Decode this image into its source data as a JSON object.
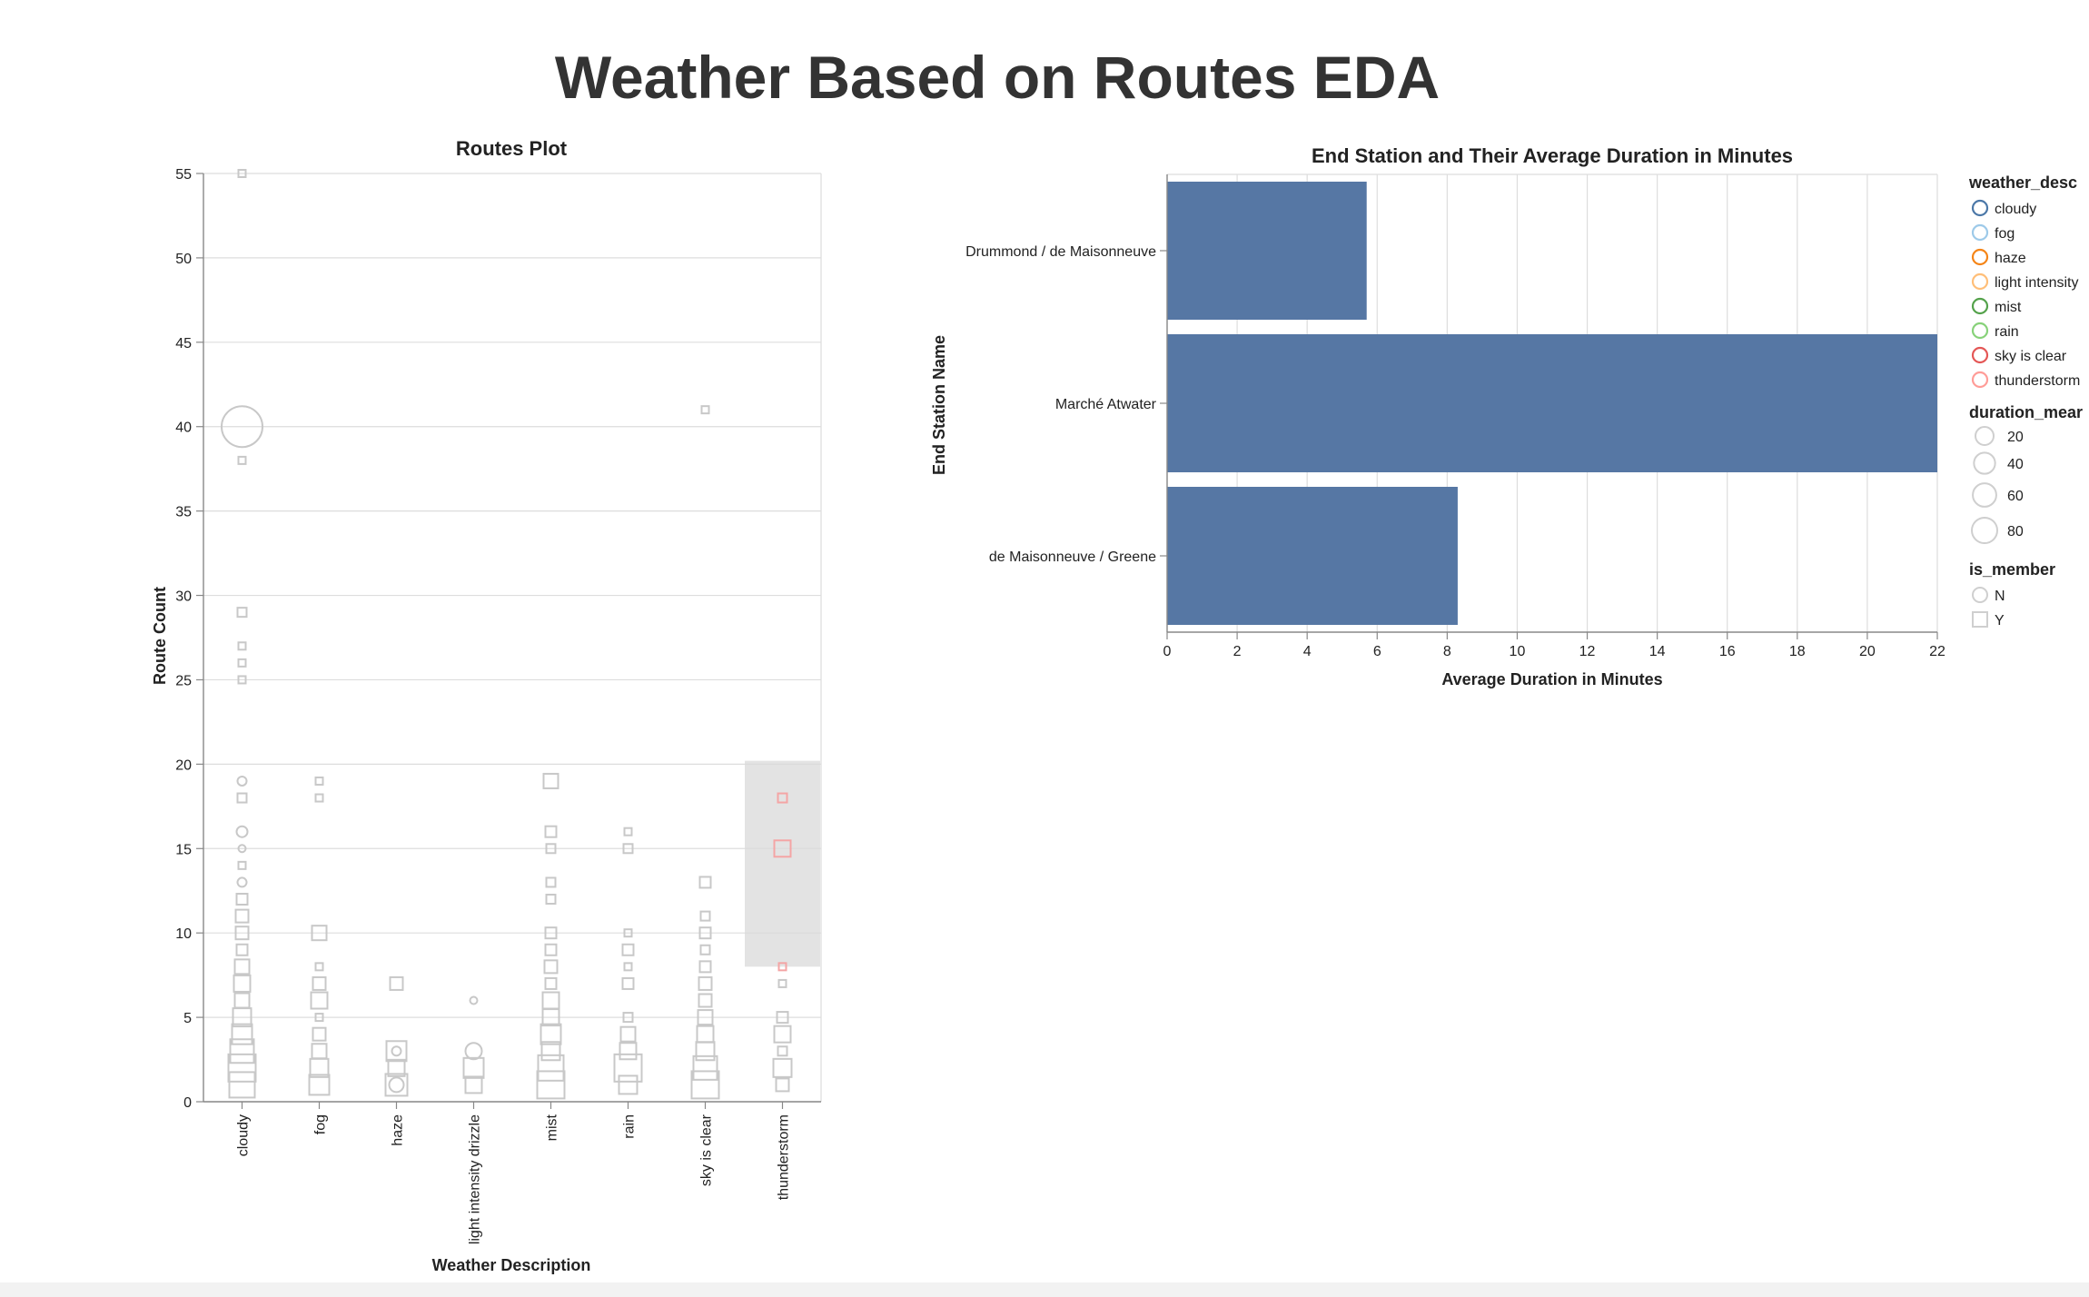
{
  "page_title": "Weather Based on Routes EDA",
  "colors": {
    "text": "#333333",
    "bar": "#5677a4",
    "grid": "#dddddd",
    "axis": "#888888",
    "dimmed_mark": "#c8c8c8",
    "selection": "#d9d9d9",
    "highlight": "#f4a5a5"
  },
  "chart_data": [
    {
      "type": "scatter",
      "title": "Routes Plot",
      "xlabel": "Weather Description",
      "ylabel": "Route Count",
      "categories": [
        "cloudy",
        "fog",
        "haze",
        "light intensity drizzle",
        "mist",
        "rain",
        "sky is clear",
        "thunderstorm"
      ],
      "ylim": [
        0,
        55
      ],
      "yticks": [
        0,
        5,
        10,
        15,
        20,
        25,
        30,
        35,
        40,
        45,
        50,
        55
      ],
      "grid": true,
      "selection": {
        "category": "thunderstorm",
        "y_range": [
          8,
          20.2
        ]
      },
      "points": [
        {
          "x": "cloudy",
          "y": 55,
          "shape": "square",
          "size": 8
        },
        {
          "x": "cloudy",
          "y": 40,
          "shape": "circle",
          "size": 45
        },
        {
          "x": "cloudy",
          "y": 38,
          "shape": "square",
          "size": 8
        },
        {
          "x": "cloudy",
          "y": 29,
          "shape": "square",
          "size": 10
        },
        {
          "x": "cloudy",
          "y": 27,
          "shape": "square",
          "size": 8
        },
        {
          "x": "cloudy",
          "y": 26,
          "shape": "square",
          "size": 8
        },
        {
          "x": "cloudy",
          "y": 25,
          "shape": "square",
          "size": 8
        },
        {
          "x": "cloudy",
          "y": 19,
          "shape": "circle",
          "size": 10
        },
        {
          "x": "cloudy",
          "y": 18,
          "shape": "square",
          "size": 10
        },
        {
          "x": "cloudy",
          "y": 16,
          "shape": "circle",
          "size": 12
        },
        {
          "x": "cloudy",
          "y": 15,
          "shape": "circle",
          "size": 8
        },
        {
          "x": "cloudy",
          "y": 14,
          "shape": "square",
          "size": 8
        },
        {
          "x": "cloudy",
          "y": 13,
          "shape": "circle",
          "size": 10
        },
        {
          "x": "cloudy",
          "y": 12,
          "shape": "square",
          "size": 12
        },
        {
          "x": "cloudy",
          "y": 11,
          "shape": "square",
          "size": 14
        },
        {
          "x": "cloudy",
          "y": 10,
          "shape": "square",
          "size": 14
        },
        {
          "x": "cloudy",
          "y": 9,
          "shape": "square",
          "size": 12
        },
        {
          "x": "cloudy",
          "y": 8,
          "shape": "square",
          "size": 16
        },
        {
          "x": "cloudy",
          "y": 7,
          "shape": "square",
          "size": 18
        },
        {
          "x": "cloudy",
          "y": 6,
          "shape": "square",
          "size": 16
        },
        {
          "x": "cloudy",
          "y": 5,
          "shape": "square",
          "size": 20
        },
        {
          "x": "cloudy",
          "y": 4,
          "shape": "square",
          "size": 22
        },
        {
          "x": "cloudy",
          "y": 3,
          "shape": "square",
          "size": 26
        },
        {
          "x": "cloudy",
          "y": 2,
          "shape": "square",
          "size": 30
        },
        {
          "x": "cloudy",
          "y": 1,
          "shape": "square",
          "size": 28
        },
        {
          "x": "fog",
          "y": 19,
          "shape": "square",
          "size": 8
        },
        {
          "x": "fog",
          "y": 18,
          "shape": "square",
          "size": 8
        },
        {
          "x": "fog",
          "y": 10,
          "shape": "square",
          "size": 16
        },
        {
          "x": "fog",
          "y": 8,
          "shape": "square",
          "size": 8
        },
        {
          "x": "fog",
          "y": 7,
          "shape": "square",
          "size": 14
        },
        {
          "x": "fog",
          "y": 6,
          "shape": "square",
          "size": 18
        },
        {
          "x": "fog",
          "y": 5,
          "shape": "square",
          "size": 8
        },
        {
          "x": "fog",
          "y": 4,
          "shape": "square",
          "size": 14
        },
        {
          "x": "fog",
          "y": 3,
          "shape": "square",
          "size": 16
        },
        {
          "x": "fog",
          "y": 2,
          "shape": "square",
          "size": 20
        },
        {
          "x": "fog",
          "y": 1,
          "shape": "square",
          "size": 22
        },
        {
          "x": "haze",
          "y": 7,
          "shape": "square",
          "size": 14
        },
        {
          "x": "haze",
          "y": 3,
          "shape": "square",
          "size": 22
        },
        {
          "x": "haze",
          "y": 2,
          "shape": "square",
          "size": 18
        },
        {
          "x": "haze",
          "y": 1,
          "shape": "square",
          "size": 24
        },
        {
          "x": "haze",
          "y": 1,
          "shape": "circle",
          "size": 16
        },
        {
          "x": "haze",
          "y": 3,
          "shape": "circle",
          "size": 10
        },
        {
          "x": "light intensity drizzle",
          "y": 6,
          "shape": "circle",
          "size": 8
        },
        {
          "x": "light intensity drizzle",
          "y": 3,
          "shape": "circle",
          "size": 18
        },
        {
          "x": "light intensity drizzle",
          "y": 2,
          "shape": "square",
          "size": 22
        },
        {
          "x": "light intensity drizzle",
          "y": 1,
          "shape": "square",
          "size": 18
        },
        {
          "x": "mist",
          "y": 19,
          "shape": "square",
          "size": 16
        },
        {
          "x": "mist",
          "y": 16,
          "shape": "square",
          "size": 12
        },
        {
          "x": "mist",
          "y": 15,
          "shape": "square",
          "size": 10
        },
        {
          "x": "mist",
          "y": 13,
          "shape": "square",
          "size": 10
        },
        {
          "x": "mist",
          "y": 12,
          "shape": "square",
          "size": 10
        },
        {
          "x": "mist",
          "y": 10,
          "shape": "square",
          "size": 12
        },
        {
          "x": "mist",
          "y": 9,
          "shape": "square",
          "size": 12
        },
        {
          "x": "mist",
          "y": 8,
          "shape": "square",
          "size": 14
        },
        {
          "x": "mist",
          "y": 7,
          "shape": "square",
          "size": 12
        },
        {
          "x": "mist",
          "y": 6,
          "shape": "square",
          "size": 18
        },
        {
          "x": "mist",
          "y": 5,
          "shape": "square",
          "size": 18
        },
        {
          "x": "mist",
          "y": 4,
          "shape": "square",
          "size": 22
        },
        {
          "x": "mist",
          "y": 3,
          "shape": "square",
          "size": 20
        },
        {
          "x": "mist",
          "y": 2,
          "shape": "square",
          "size": 28
        },
        {
          "x": "mist",
          "y": 1,
          "shape": "square",
          "size": 30
        },
        {
          "x": "rain",
          "y": 16,
          "shape": "square",
          "size": 8
        },
        {
          "x": "rain",
          "y": 15,
          "shape": "square",
          "size": 10
        },
        {
          "x": "rain",
          "y": 10,
          "shape": "square",
          "size": 8
        },
        {
          "x": "rain",
          "y": 9,
          "shape": "square",
          "size": 12
        },
        {
          "x": "rain",
          "y": 8,
          "shape": "square",
          "size": 8
        },
        {
          "x": "rain",
          "y": 7,
          "shape": "square",
          "size": 12
        },
        {
          "x": "rain",
          "y": 5,
          "shape": "square",
          "size": 10
        },
        {
          "x": "rain",
          "y": 4,
          "shape": "square",
          "size": 16
        },
        {
          "x": "rain",
          "y": 3,
          "shape": "square",
          "size": 18
        },
        {
          "x": "rain",
          "y": 2,
          "shape": "square",
          "size": 30
        },
        {
          "x": "rain",
          "y": 1,
          "shape": "square",
          "size": 20
        },
        {
          "x": "sky is clear",
          "y": 41,
          "shape": "square",
          "size": 8
        },
        {
          "x": "sky is clear",
          "y": 13,
          "shape": "square",
          "size": 12
        },
        {
          "x": "sky is clear",
          "y": 11,
          "shape": "square",
          "size": 10
        },
        {
          "x": "sky is clear",
          "y": 10,
          "shape": "square",
          "size": 12
        },
        {
          "x": "sky is clear",
          "y": 9,
          "shape": "square",
          "size": 10
        },
        {
          "x": "sky is clear",
          "y": 8,
          "shape": "square",
          "size": 12
        },
        {
          "x": "sky is clear",
          "y": 7,
          "shape": "square",
          "size": 14
        },
        {
          "x": "sky is clear",
          "y": 6,
          "shape": "square",
          "size": 14
        },
        {
          "x": "sky is clear",
          "y": 5,
          "shape": "square",
          "size": 16
        },
        {
          "x": "sky is clear",
          "y": 4,
          "shape": "square",
          "size": 18
        },
        {
          "x": "sky is clear",
          "y": 3,
          "shape": "square",
          "size": 20
        },
        {
          "x": "sky is clear",
          "y": 2,
          "shape": "square",
          "size": 26
        },
        {
          "x": "sky is clear",
          "y": 1,
          "shape": "square",
          "size": 30
        },
        {
          "x": "thunderstorm",
          "y": 18,
          "shape": "square",
          "size": 10,
          "highlight": true
        },
        {
          "x": "thunderstorm",
          "y": 15,
          "shape": "square",
          "size": 18,
          "highlight": true
        },
        {
          "x": "thunderstorm",
          "y": 8,
          "shape": "square",
          "size": 8,
          "highlight": true
        },
        {
          "x": "thunderstorm",
          "y": 7,
          "shape": "square",
          "size": 8
        },
        {
          "x": "thunderstorm",
          "y": 5,
          "shape": "square",
          "size": 12
        },
        {
          "x": "thunderstorm",
          "y": 4,
          "shape": "square",
          "size": 18
        },
        {
          "x": "thunderstorm",
          "y": 3,
          "shape": "square",
          "size": 10
        },
        {
          "x": "thunderstorm",
          "y": 2,
          "shape": "square",
          "size": 20
        },
        {
          "x": "thunderstorm",
          "y": 1,
          "shape": "square",
          "size": 14
        }
      ]
    },
    {
      "type": "bar",
      "orientation": "horizontal",
      "title": "End Station and Their Average Duration in Minutes",
      "xlabel": "Average Duration in Minutes",
      "ylabel": "End Station Name",
      "categories": [
        "Drummond / de Maisonneuve",
        "Marché Atwater",
        "de Maisonneuve / Greene"
      ],
      "values": [
        5.7,
        22,
        8.3
      ],
      "xlim": [
        0,
        22
      ],
      "xticks": [
        0,
        2,
        4,
        6,
        8,
        10,
        12,
        14,
        16,
        18,
        20,
        22
      ],
      "grid": true
    }
  ],
  "legends": {
    "weather": {
      "title": "weather_desc",
      "items": [
        {
          "label": "cloudy",
          "color": "#4c78a8"
        },
        {
          "label": "fog",
          "color": "#9ecae9"
        },
        {
          "label": "haze",
          "color": "#f58518"
        },
        {
          "label": "light intensity",
          "color": "#ffbf79"
        },
        {
          "label": "mist",
          "color": "#54a24b"
        },
        {
          "label": "rain",
          "color": "#88d27a"
        },
        {
          "label": "sky is clear",
          "color": "#e45756"
        },
        {
          "label": "thunderstorm",
          "color": "#ff9d98"
        }
      ]
    },
    "duration": {
      "title": "duration_mear",
      "items": [
        {
          "label": "20",
          "value": 20
        },
        {
          "label": "40",
          "value": 40
        },
        {
          "label": "60",
          "value": 60
        },
        {
          "label": "80",
          "value": 80
        }
      ]
    },
    "member": {
      "title": "is_member",
      "items": [
        {
          "label": "N",
          "shape": "circle"
        },
        {
          "label": "Y",
          "shape": "square"
        }
      ]
    }
  }
}
